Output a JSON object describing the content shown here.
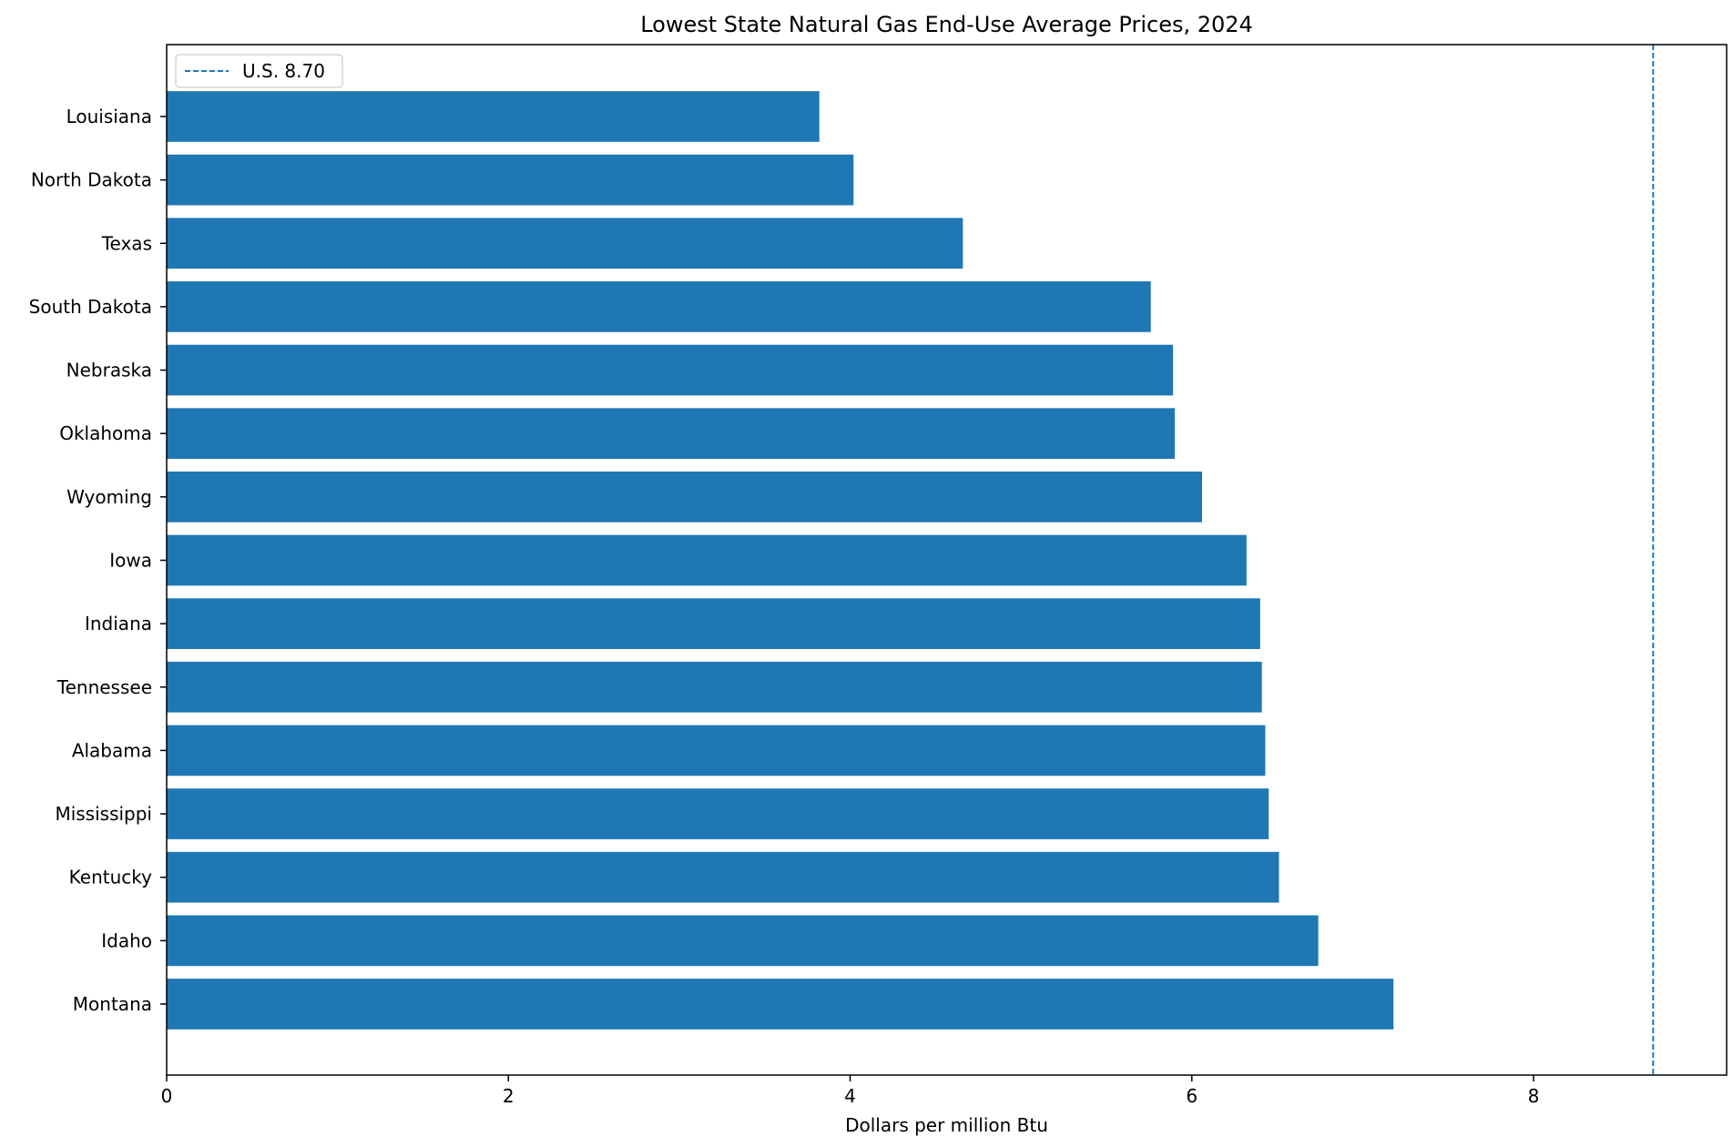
{
  "chart_data": {
    "type": "bar",
    "orientation": "horizontal",
    "title": "Lowest State Natural Gas End-Use Average Prices, 2024",
    "xlabel": "Dollars per million Btu",
    "ylabel": "",
    "xlim": [
      0,
      9.13
    ],
    "x_ticks": [
      0,
      2,
      4,
      6,
      8
    ],
    "grid": false,
    "legend_position": "upper-left",
    "categories": [
      "Louisiana",
      "North Dakota",
      "Texas",
      "South Dakota",
      "Nebraska",
      "Oklahoma",
      "Wyoming",
      "Iowa",
      "Indiana",
      "Tennessee",
      "Alabama",
      "Mississippi",
      "Kentucky",
      "Idaho",
      "Montana"
    ],
    "values": [
      3.82,
      4.02,
      4.66,
      5.76,
      5.89,
      5.9,
      6.06,
      6.32,
      6.4,
      6.41,
      6.43,
      6.45,
      6.51,
      6.74,
      7.18
    ],
    "bar_color": "#1f77b4",
    "reference_line": {
      "label": "U.S. 8.70",
      "value": 8.7,
      "color": "#1f77b4",
      "style": "dashed"
    }
  }
}
